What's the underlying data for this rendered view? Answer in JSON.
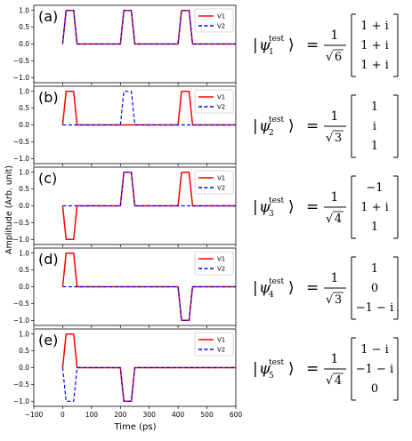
{
  "chart_data": {
    "type": "line",
    "shared_x_axis": {
      "label": "Time (ps)",
      "xlim": [
        -100,
        600
      ],
      "ticks": [
        -100,
        0,
        100,
        200,
        300,
        400,
        500,
        600
      ]
    },
    "ylabel": "Amplitude (Arb. unit)",
    "ylim": [
      -1.15,
      1.15
    ],
    "yticks": [
      -1.0,
      -0.5,
      0.0,
      0.5,
      1.0
    ],
    "legend_position": "top-right",
    "series_styles": [
      {
        "name": "V1",
        "color": "#ff0000",
        "style": "solid"
      },
      {
        "name": "V2",
        "color": "#0000ff",
        "style": "dashed"
      }
    ],
    "panels": [
      {
        "label": "(a)",
        "series": [
          {
            "name": "V1",
            "x": [
              0,
              12,
              38,
              50,
              200,
              212,
              238,
              250,
              400,
              412,
              438,
              450,
              600
            ],
            "y": [
              0,
              1,
              1,
              0,
              0,
              1,
              1,
              0,
              0,
              1,
              1,
              0,
              0
            ]
          },
          {
            "name": "V2",
            "x": [
              0,
              12,
              38,
              50,
              200,
              212,
              238,
              250,
              400,
              412,
              438,
              450,
              600
            ],
            "y": [
              0,
              1,
              1,
              0,
              0,
              1,
              1,
              0,
              0,
              1,
              1,
              0,
              0
            ]
          }
        ]
      },
      {
        "label": "(b)",
        "series": [
          {
            "name": "V1",
            "x": [
              0,
              12,
              38,
              50,
              200,
              212,
              238,
              250,
              400,
              412,
              438,
              450,
              600
            ],
            "y": [
              0,
              1,
              1,
              0,
              0,
              0,
              0,
              0,
              0,
              1,
              1,
              0,
              0
            ]
          },
          {
            "name": "V2",
            "x": [
              0,
              12,
              38,
              50,
              200,
              212,
              238,
              250,
              400,
              412,
              438,
              450,
              600
            ],
            "y": [
              0,
              0,
              0,
              0,
              0,
              1,
              1,
              0,
              0,
              0,
              0,
              0,
              0
            ]
          }
        ]
      },
      {
        "label": "(c)",
        "series": [
          {
            "name": "V1",
            "x": [
              0,
              12,
              38,
              50,
              200,
              212,
              238,
              250,
              400,
              412,
              438,
              450,
              600
            ],
            "y": [
              0,
              -1,
              -1,
              0,
              0,
              1,
              1,
              0,
              0,
              1,
              1,
              0,
              0
            ]
          },
          {
            "name": "V2",
            "x": [
              0,
              12,
              38,
              50,
              200,
              212,
              238,
              250,
              400,
              412,
              438,
              450,
              600
            ],
            "y": [
              0,
              0,
              0,
              0,
              0,
              1,
              1,
              0,
              0,
              0,
              0,
              0,
              0
            ]
          }
        ]
      },
      {
        "label": "(d)",
        "series": [
          {
            "name": "V1",
            "x": [
              0,
              12,
              38,
              50,
              200,
              212,
              238,
              250,
              400,
              412,
              438,
              450,
              600
            ],
            "y": [
              0,
              1,
              1,
              0,
              0,
              0,
              0,
              0,
              0,
              -1,
              -1,
              0,
              0
            ]
          },
          {
            "name": "V2",
            "x": [
              0,
              12,
              38,
              50,
              200,
              212,
              238,
              250,
              400,
              412,
              438,
              450,
              600
            ],
            "y": [
              0,
              0,
              0,
              0,
              0,
              0,
              0,
              0,
              0,
              -1,
              -1,
              0,
              0
            ]
          }
        ]
      },
      {
        "label": "(e)",
        "series": [
          {
            "name": "V1",
            "x": [
              0,
              12,
              38,
              50,
              200,
              212,
              238,
              250,
              400,
              412,
              438,
              450,
              600
            ],
            "y": [
              0,
              1,
              1,
              0,
              0,
              -1,
              -1,
              0,
              0,
              0,
              0,
              0,
              0
            ]
          },
          {
            "name": "V2",
            "x": [
              0,
              12,
              38,
              50,
              200,
              212,
              238,
              250,
              400,
              412,
              438,
              450,
              600
            ],
            "y": [
              0,
              -1,
              -1,
              0,
              0,
              -1,
              -1,
              0,
              0,
              0,
              0,
              0,
              0
            ]
          }
        ]
      }
    ]
  },
  "equations": [
    {
      "label": "test-state-1",
      "index": "1",
      "norm": "6",
      "components": [
        "1 + i",
        "1 + i",
        "1 + i"
      ]
    },
    {
      "label": "test-state-2",
      "index": "2",
      "norm": "3",
      "components": [
        "1",
        "i",
        "1"
      ]
    },
    {
      "label": "test-state-3",
      "index": "3",
      "norm": "4",
      "components": [
        "−1",
        "1 + i",
        "1"
      ]
    },
    {
      "label": "test-state-4",
      "index": "4",
      "norm": "3",
      "components": [
        "1",
        "0",
        "−1 − i"
      ]
    },
    {
      "label": "test-state-5",
      "index": "5",
      "norm": "4",
      "components": [
        "1 − i",
        "−1 − i",
        "0"
      ]
    }
  ],
  "math": {
    "ket_symbol": "ψ",
    "superscript": "test",
    "numerator": "1",
    "equals": "="
  }
}
